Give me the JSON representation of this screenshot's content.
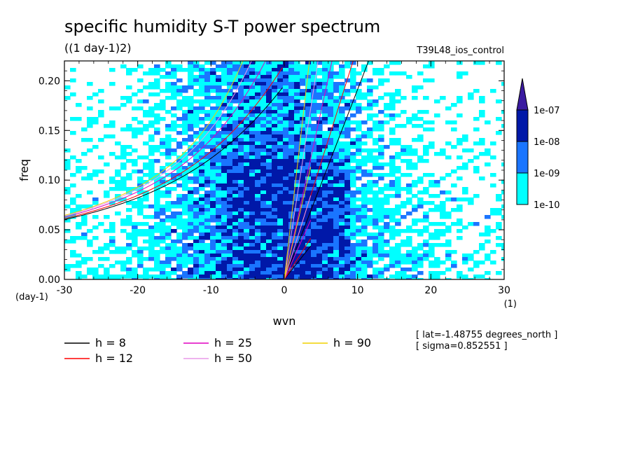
{
  "chart_data": {
    "type": "contour",
    "title": "specific humidity S-T power spectrum",
    "subtitle": "((1 day-1)2)",
    "experiment": "T39L48_ios_control",
    "xlabel": "wvn",
    "ylabel": "freq",
    "x_unit": "(1)",
    "y_unit": "(day-1)",
    "xlim": [
      -30,
      30
    ],
    "ylim": [
      0,
      0.22
    ],
    "x_ticks": [
      -30,
      -20,
      -10,
      0,
      10,
      20,
      30
    ],
    "x_tick_labels": [
      "-30",
      "-20",
      "-10",
      "0",
      "10",
      "20",
      "30"
    ],
    "y_ticks": [
      0.0,
      0.05,
      0.1,
      0.15,
      0.2
    ],
    "y_tick_labels": [
      "0.00",
      "0.05",
      "0.10",
      "0.15",
      "0.20"
    ],
    "colorbar": {
      "levels": [
        "1e-10",
        "1e-09",
        "1e-08",
        "1e-07"
      ],
      "colors": [
        "#00ffff",
        "#1a75ff",
        "#0018a8",
        "#3a1aa0"
      ]
    },
    "dispersion_curves": [
      {
        "name": "h =  8",
        "h": 8,
        "color": "#000000"
      },
      {
        "name": "h = 12",
        "h": 12,
        "color": "#ff0000"
      },
      {
        "name": "h = 25",
        "h": 25,
        "color": "#e000c0"
      },
      {
        "name": "h = 50",
        "h": 50,
        "color": "#e89ae8"
      },
      {
        "name": "h = 90",
        "h": 90,
        "color": "#f0d000"
      }
    ],
    "annotations": [
      "[ lat=-1.48755 degrees_north ]",
      "[ sigma=0.852551 ]"
    ]
  },
  "colors": {
    "cyan": "#00ffff",
    "blue": "#1a75ff",
    "navy": "#0018a8",
    "violet": "#3a1aa0"
  }
}
